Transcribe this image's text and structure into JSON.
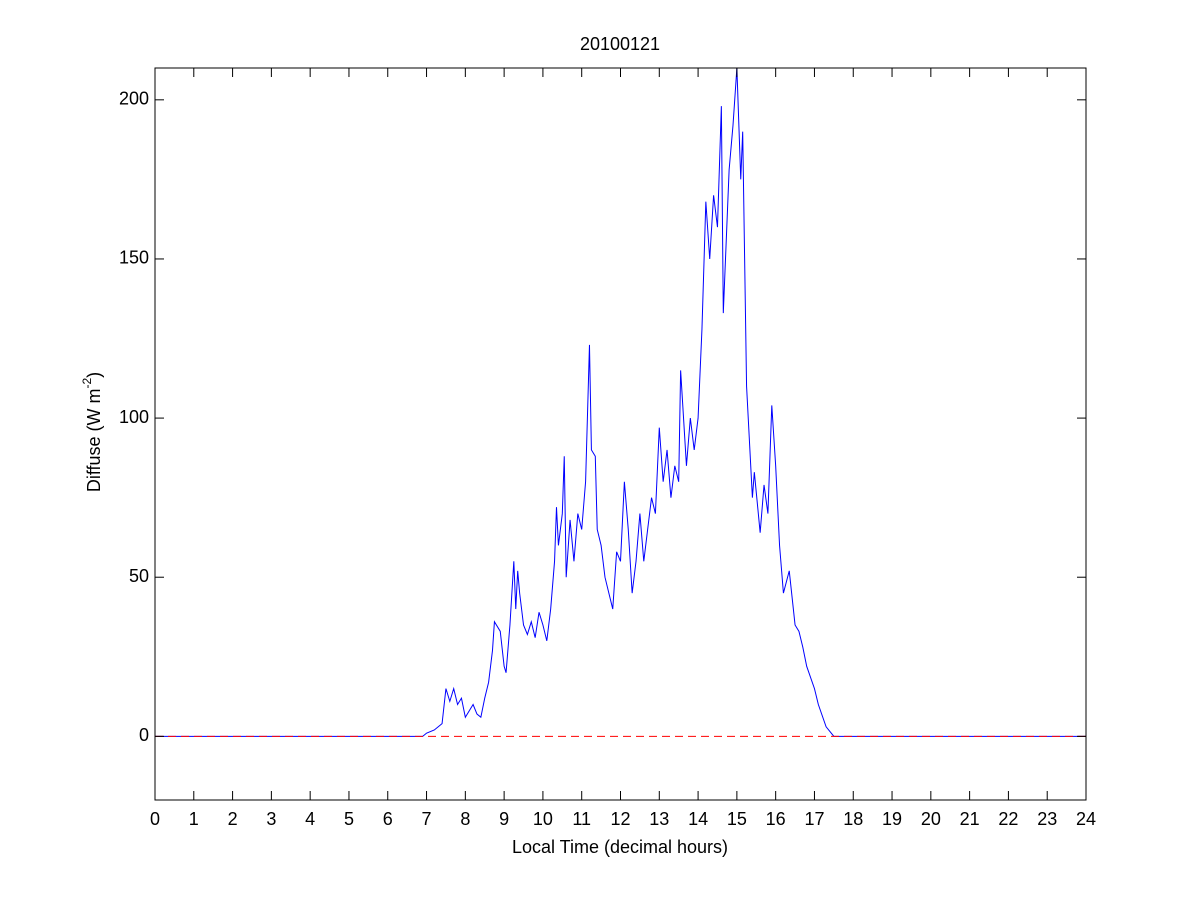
{
  "chart_data": {
    "type": "line",
    "title": "20100121",
    "xlabel": "Local Time (decimal hours)",
    "ylabel": [
      "Diffuse (W m",
      "-2",
      ")"
    ],
    "xlim": [
      0,
      24
    ],
    "xticks": [
      0,
      1,
      2,
      3,
      4,
      5,
      6,
      7,
      8,
      9,
      10,
      11,
      12,
      13,
      14,
      15,
      16,
      17,
      18,
      19,
      20,
      21,
      22,
      23,
      24
    ],
    "ylim": [
      -20,
      210
    ],
    "yticks": [
      0,
      50,
      100,
      150,
      200
    ],
    "reference_line": {
      "y": 0,
      "color": "#ff0000",
      "style": "dashed"
    },
    "series": [
      {
        "color": "#0000ff",
        "x": [
          0,
          6.9,
          7.0,
          7.2,
          7.4,
          7.5,
          7.6,
          7.7,
          7.8,
          7.9,
          8.0,
          8.1,
          8.2,
          8.3,
          8.4,
          8.5,
          8.6,
          8.7,
          8.75,
          8.9,
          9.0,
          9.05,
          9.15,
          9.25,
          9.3,
          9.35,
          9.4,
          9.5,
          9.6,
          9.7,
          9.8,
          9.9,
          10.0,
          10.1,
          10.2,
          10.3,
          10.35,
          10.4,
          10.5,
          10.55,
          10.6,
          10.7,
          10.8,
          10.9,
          11.0,
          11.1,
          11.2,
          11.25,
          11.35,
          11.4,
          11.5,
          11.6,
          11.7,
          11.8,
          11.9,
          12.0,
          12.1,
          12.2,
          12.3,
          12.4,
          12.5,
          12.6,
          12.7,
          12.8,
          12.9,
          13.0,
          13.1,
          13.2,
          13.3,
          13.4,
          13.5,
          13.55,
          13.6,
          13.7,
          13.8,
          13.9,
          14.0,
          14.1,
          14.2,
          14.3,
          14.4,
          14.5,
          14.6,
          14.65,
          14.8,
          14.9,
          15.0,
          15.1,
          15.15,
          15.25,
          15.4,
          15.45,
          15.6,
          15.7,
          15.8,
          15.9,
          16.0,
          16.1,
          16.2,
          16.35,
          16.5,
          16.6,
          16.7,
          16.8,
          17.0,
          17.1,
          17.3,
          17.5,
          17.6,
          24
        ],
        "values": [
          0,
          0,
          1,
          2,
          4,
          15,
          11,
          15,
          10,
          12,
          6,
          8,
          10,
          7,
          6,
          12,
          17,
          27,
          36,
          33,
          22,
          20,
          35,
          55,
          40,
          52,
          45,
          35,
          32,
          36,
          31,
          39,
          35,
          30,
          40,
          55,
          72,
          60,
          70,
          88,
          50,
          68,
          55,
          70,
          65,
          80,
          123,
          90,
          88,
          65,
          60,
          50,
          45,
          40,
          58,
          55,
          80,
          65,
          45,
          55,
          70,
          55,
          65,
          75,
          70,
          97,
          80,
          90,
          75,
          85,
          80,
          115,
          105,
          85,
          100,
          90,
          100,
          128,
          168,
          150,
          170,
          160,
          198,
          133,
          178,
          192,
          210,
          175,
          190,
          110,
          75,
          83,
          64,
          79,
          70,
          104,
          85,
          60,
          45,
          52,
          35,
          33,
          28,
          22,
          15,
          10,
          3,
          0,
          0,
          0
        ]
      }
    ]
  }
}
